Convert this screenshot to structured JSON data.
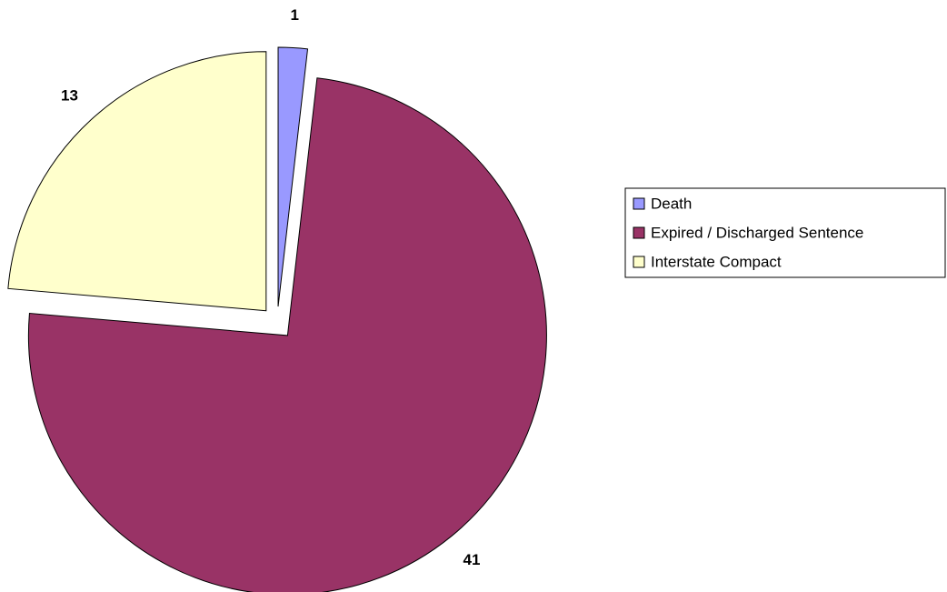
{
  "chart_data": {
    "type": "pie",
    "categories": [
      "Death",
      "Expired / Discharged Sentence",
      "Interstate Compact"
    ],
    "values": [
      1,
      41,
      13
    ],
    "colors": [
      "#9999ff",
      "#993366",
      "#ffffcc"
    ],
    "legend": "right"
  }
}
